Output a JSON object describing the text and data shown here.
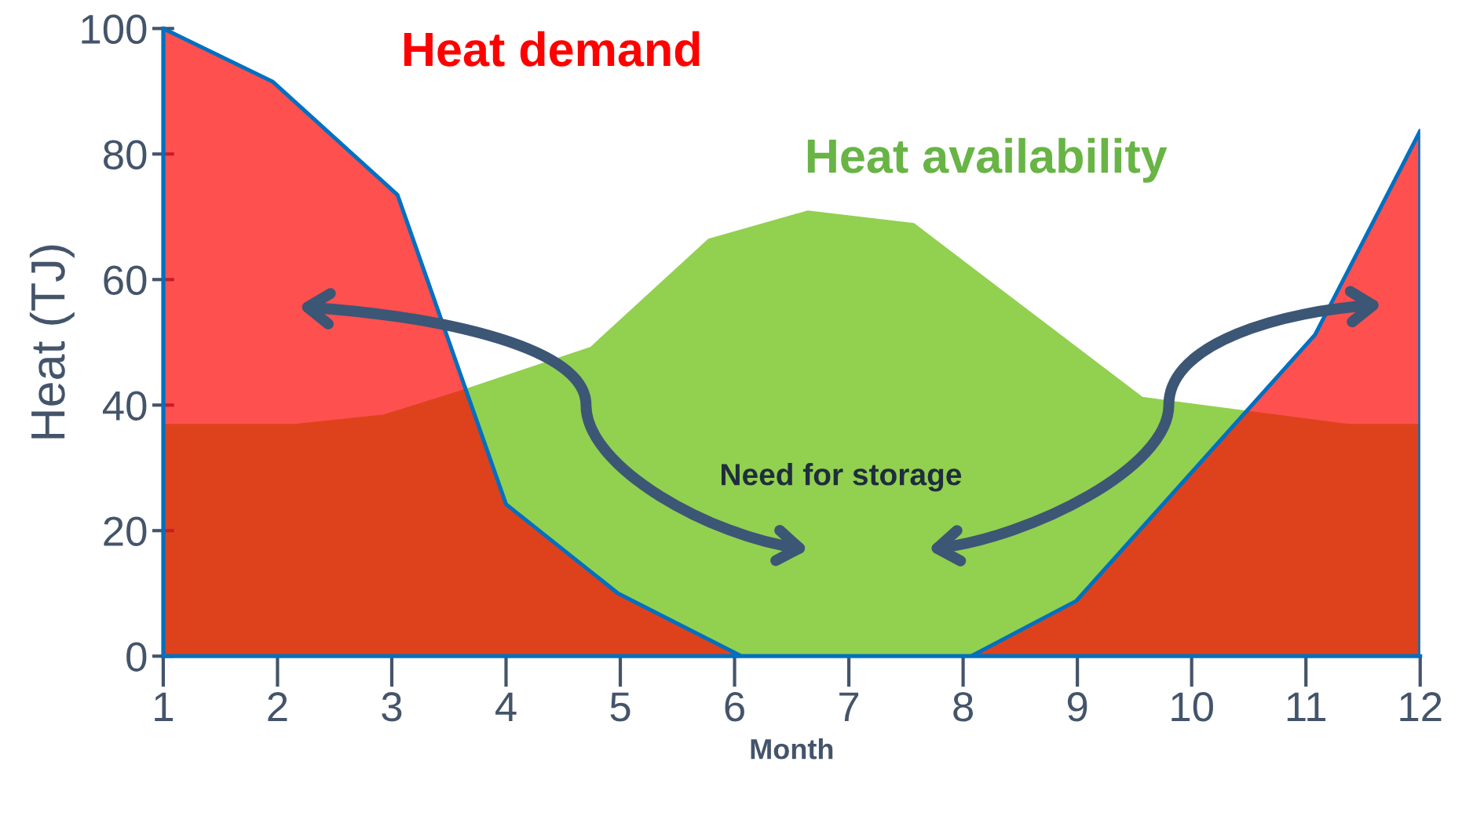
{
  "chart_data": {
    "type": "area",
    "xlabel": "Month",
    "ylabel": "Heat (TJ)",
    "xlim": [
      1,
      12
    ],
    "xticks": [
      1,
      2,
      3,
      4,
      5,
      6,
      7,
      8,
      9,
      10,
      11,
      12
    ],
    "ylim": [
      0,
      100
    ],
    "yticks": [
      0,
      20,
      40,
      60,
      80,
      100
    ],
    "grid": false,
    "legend": false,
    "series": [
      {
        "name": "Heat availability",
        "color": "#92d050",
        "x": [
          1,
          2.15,
          2.93,
          3.63,
          4.74,
          5.77,
          6.64,
          7.57,
          9.57,
          11.37,
          12
        ],
        "values": [
          37,
          37,
          38.5,
          42.5,
          49.3,
          66.5,
          71,
          69,
          41.3,
          37,
          37
        ]
      },
      {
        "name": "Heat demand",
        "color": "#ff0505",
        "x": [
          1,
          1.96,
          3.05,
          4.0,
          4.98,
          6.06,
          8.07,
          8.99,
          11.08,
          12
        ],
        "values": [
          100,
          91.5,
          73.5,
          24.2,
          10,
          0,
          0,
          8.8,
          51.2,
          83.7
        ]
      }
    ],
    "annotations": [
      "Need for storage"
    ]
  }
}
